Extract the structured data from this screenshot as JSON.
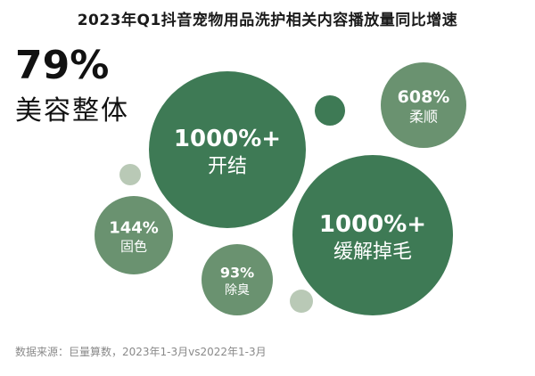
{
  "title": "2023年Q1抖音宠物用品洗护相关内容播放量同比增速",
  "headline": {
    "value": "79%",
    "label": "美容整体"
  },
  "source": "数据来源：巨量算数，2023年1-3月vs2022年1-3月",
  "colors": {
    "dark_green": "#3e7a55",
    "mid_green": "#6a9270",
    "light_green": "#b9c9b6"
  },
  "chart_data": {
    "type": "bubble",
    "title": "2023年Q1抖音宠物用品洗护相关内容播放量同比增速",
    "series": [
      {
        "category": "开结",
        "value_label": "1000%+",
        "growth_pct": 1000
      },
      {
        "category": "缓解掉毛",
        "value_label": "1000%+",
        "growth_pct": 1000
      },
      {
        "category": "柔顺",
        "value_label": "608%",
        "growth_pct": 608
      },
      {
        "category": "固色",
        "value_label": "144%",
        "growth_pct": 144
      },
      {
        "category": "除臭",
        "value_label": "93%",
        "growth_pct": 93
      }
    ]
  }
}
